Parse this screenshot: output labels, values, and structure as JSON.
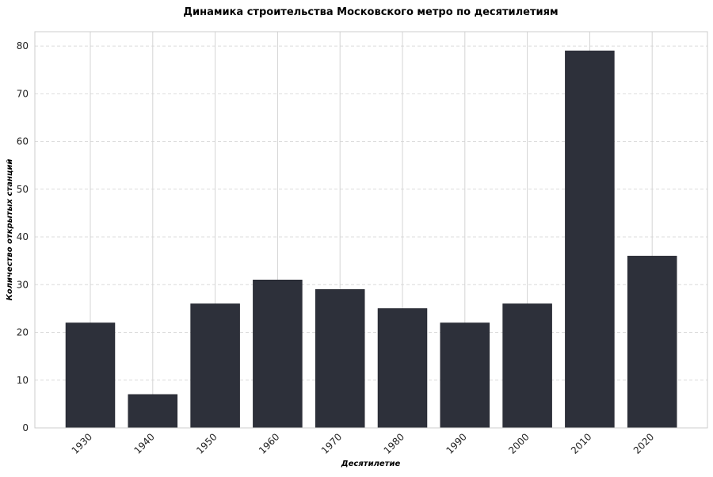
{
  "chart_data": {
    "type": "bar",
    "title": "Динамика строительства Московского метро по десятилетиям",
    "xlabel": "Десятилетие",
    "ylabel": "Количество открытых станций",
    "categories": [
      "1930",
      "1940",
      "1950",
      "1960",
      "1970",
      "1980",
      "1990",
      "2000",
      "2010",
      "2020"
    ],
    "values": [
      22,
      7,
      26,
      31,
      29,
      25,
      22,
      26,
      79,
      36
    ],
    "ylim": [
      0,
      83
    ],
    "yticks": [
      "0",
      "10",
      "20",
      "30",
      "40",
      "50",
      "60",
      "70",
      "80"
    ],
    "grid": true,
    "bar_color": "#2d303a"
  }
}
